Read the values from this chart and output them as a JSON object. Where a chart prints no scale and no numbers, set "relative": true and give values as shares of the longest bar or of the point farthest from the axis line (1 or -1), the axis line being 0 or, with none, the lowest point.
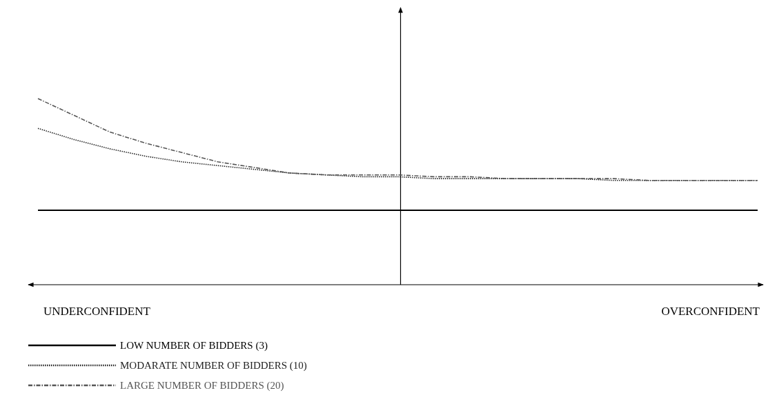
{
  "chart_data": {
    "type": "line",
    "relative": true,
    "categories": [
      null,
      null,
      null,
      null,
      null,
      null,
      null,
      null,
      null,
      null,
      null,
      null,
      null,
      null,
      null,
      null,
      null,
      null,
      null,
      null,
      null
    ],
    "series": [
      {
        "name": "LOW NUMBER OF BIDDERS (3)",
        "color": "#000000",
        "line_style": "solid",
        "values": [
          0.4,
          0.4,
          0.4,
          0.4,
          0.4,
          0.4,
          0.4,
          0.4,
          0.4,
          0.4,
          0.4,
          0.4,
          0.4,
          0.4,
          0.4,
          0.4,
          0.4,
          0.4,
          0.4,
          0.4,
          0.4
        ]
      },
      {
        "name": "MODARATE NUMBER OF BIDDERS (10)",
        "color": "#222222",
        "line_style": "dotted",
        "values": [
          0.84,
          0.78,
          0.73,
          0.69,
          0.66,
          0.64,
          0.62,
          0.6,
          0.59,
          0.58,
          0.58,
          0.57,
          0.57,
          0.57,
          0.57,
          0.57,
          0.56,
          0.56,
          0.56,
          0.56,
          0.56
        ]
      },
      {
        "name": "LARGE NUMBER OF BIDDERS (20)",
        "color": "#555555",
        "line_style": "dashed",
        "values": [
          1,
          0.91,
          0.82,
          0.76,
          0.71,
          0.66,
          0.63,
          0.6,
          0.59,
          0.59,
          0.59,
          0.58,
          0.58,
          0.57,
          0.57,
          0.57,
          0.57,
          0.56,
          0.56,
          0.56,
          0.56
        ]
      }
    ],
    "annotations": [
      "UNDERCONFIDENT",
      "OVERCONFIDENT"
    ],
    "legend": "bottom left"
  }
}
